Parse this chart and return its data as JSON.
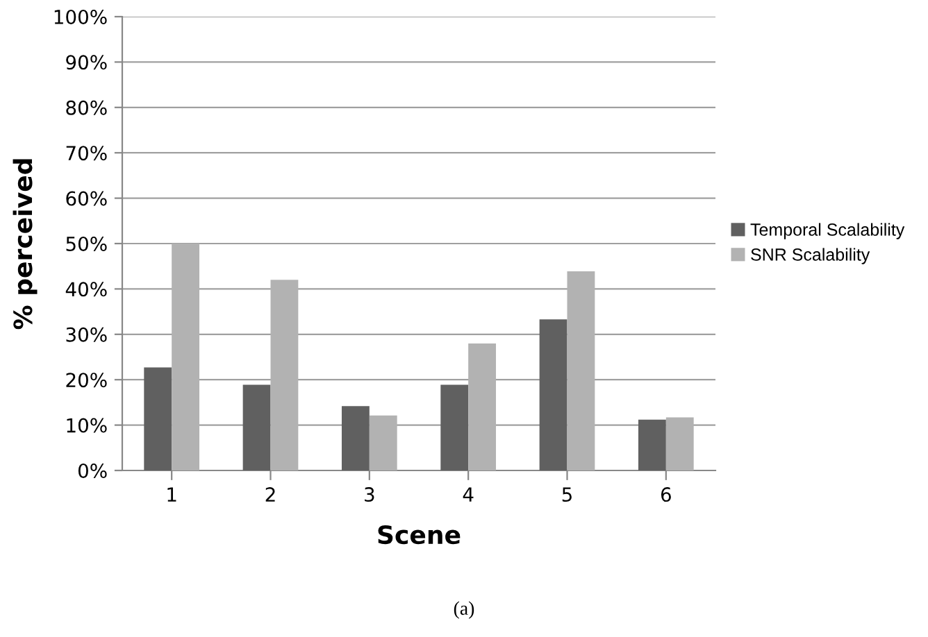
{
  "chart_data": {
    "type": "bar",
    "xlabel": "Scene",
    "ylabel": "% perceived",
    "categories": [
      "1",
      "2",
      "3",
      "4",
      "5",
      "6"
    ],
    "series": [
      {
        "name": "Temporal Scalability",
        "color": "#606060",
        "values": [
          22.7,
          18.9,
          14.2,
          18.9,
          33.3,
          11.2
        ]
      },
      {
        "name": "SNR Scalability",
        "color": "#b2b2b2",
        "values": [
          50,
          42,
          12.1,
          28,
          43.9,
          11.7
        ]
      }
    ],
    "ylim": [
      0,
      100
    ],
    "yticks": [
      {
        "value": 0,
        "label": "0%"
      },
      {
        "value": 10,
        "label": "10%"
      },
      {
        "value": 20,
        "label": "20%"
      },
      {
        "value": 30,
        "label": "30%"
      },
      {
        "value": 40,
        "label": "40%"
      },
      {
        "value": 50,
        "label": "50%"
      },
      {
        "value": 60,
        "label": "60%"
      },
      {
        "value": 70,
        "label": "70%"
      },
      {
        "value": 80,
        "label": "80%"
      },
      {
        "value": 90,
        "label": "90%"
      },
      {
        "value": 100,
        "label": "100%"
      }
    ],
    "grid": "y",
    "legend": "right",
    "annotations": [
      "(a)"
    ]
  }
}
